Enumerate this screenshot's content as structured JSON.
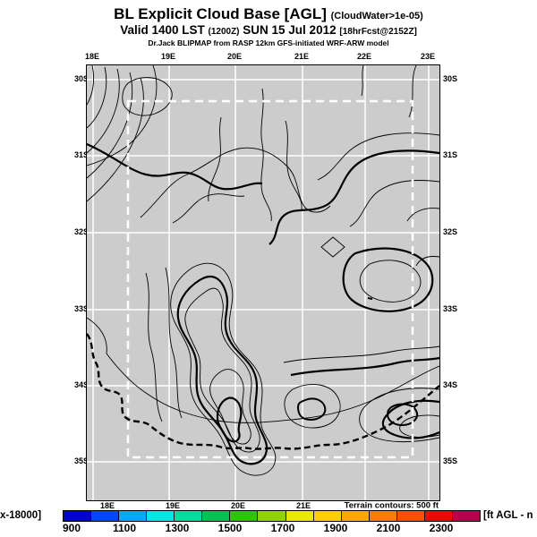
{
  "header": {
    "title": "BL Explicit Cloud Base [AGL]",
    "title_note": "(CloudWater>1e-05)",
    "valid_main1": "Valid 1400 LST",
    "valid_small1": "(1200Z)",
    "valid_main2": "SUN 15 Jul 2012",
    "valid_small2": "[18hrFcst@2152Z]",
    "model_line": "Dr.Jack BLIPMAP from RASP 12km GFS-initiated WRF-ARW model"
  },
  "map": {
    "top_labels": [
      "18E",
      "19E",
      "20E",
      "21E",
      "22E",
      "23E"
    ],
    "bottom_labels": [
      "18E",
      "19E",
      "20E",
      "21E"
    ],
    "left_labels": [
      "30S",
      "31S",
      "32S",
      "33S",
      "34S",
      "35S"
    ],
    "right_labels": [
      "30S",
      "31S",
      "32S",
      "33S",
      "34S",
      "35S"
    ],
    "terrain_note": "Terrain contours: 500 ft",
    "background_color": "#cccccc",
    "gridline_color": "#ffffff",
    "contour_color": "#000000",
    "inner_domain_style": "white dashed rectangle"
  },
  "colorbar": {
    "left_label": "x-18000]",
    "right_label": "[ft AGL - n",
    "ticks": [
      "900",
      "1100",
      "1300",
      "1500",
      "1700",
      "1900",
      "2100",
      "2300"
    ],
    "units": "ft AGL",
    "segment_colors": [
      "#0000d5",
      "#0045ff",
      "#00aaff",
      "#00e8e0",
      "#00dd9d",
      "#00c353",
      "#2fc400",
      "#8fd400",
      "#e8e800",
      "#ffd000",
      "#ffa800",
      "#ff7c00",
      "#ff4e00",
      "#ee0a00",
      "#b8004e"
    ]
  }
}
